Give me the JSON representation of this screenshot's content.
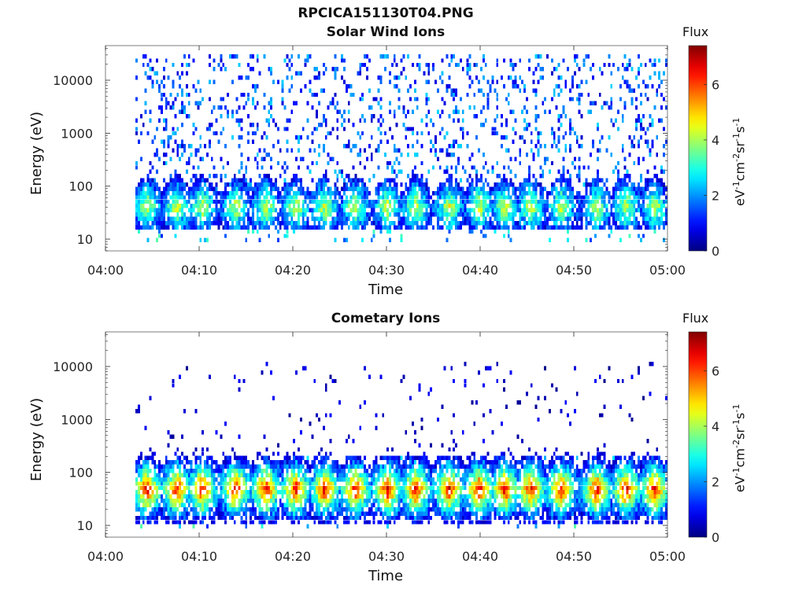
{
  "figure": {
    "title": "RPCICA151130T04.PNG"
  },
  "panels": [
    {
      "title": "Solar Wind Ions",
      "xlabel": "Time",
      "ylabel": "Energy (eV)",
      "colorbar": {
        "title": "Flux",
        "unit_parts": [
          "eV",
          "-1",
          "cm",
          "-2",
          "sr",
          "-1",
          "s",
          "-1"
        ],
        "ticks": [
          "0",
          "2",
          "4",
          "6"
        ]
      }
    },
    {
      "title": "Cometary Ions",
      "xlabel": "Time",
      "ylabel": "Energy (eV)",
      "colorbar": {
        "title": "Flux",
        "unit_parts": [
          "eV",
          "-1",
          "cm",
          "-2",
          "sr",
          "-1",
          "s",
          "-1"
        ],
        "ticks": [
          "0",
          "2",
          "4",
          "6"
        ]
      }
    }
  ],
  "chart_data": [
    {
      "type": "heatmap",
      "title": "Solar Wind Ions",
      "xlabel": "Time",
      "ylabel": "Energy (eV)",
      "x_ticks": [
        "04:00",
        "04:10",
        "04:20",
        "04:30",
        "04:40",
        "04:50",
        "05:00"
      ],
      "x_range_minutes": [
        0,
        60
      ],
      "y_ticks": [
        "10",
        "100",
        "1000",
        "10000"
      ],
      "y_scale": "log",
      "y_range": [
        6,
        45000
      ],
      "data_start_minute": 3.2,
      "data_end_minute": 60.0,
      "colorbar": {
        "label": "Flux",
        "range": [
          0,
          7.4
        ],
        "colormap": "jet"
      },
      "low_energy_band": {
        "energy_min": 20,
        "energy_max": 80,
        "peak_flux": 4.5
      },
      "scatter_energy_range": [
        100,
        30000
      ],
      "scatter_flux_range": [
        0.5,
        2.5
      ],
      "burst_minutes": [
        4.3,
        7.5,
        10.2,
        13.8,
        17.0,
        20.2,
        23.3,
        26.5,
        30.0,
        33.0,
        36.6,
        39.8,
        42.5,
        45.3,
        48.5,
        52.3,
        55.5,
        58.5
      ]
    },
    {
      "type": "heatmap",
      "title": "Cometary Ions",
      "xlabel": "Time",
      "ylabel": "Energy (eV)",
      "x_ticks": [
        "04:00",
        "04:10",
        "04:20",
        "04:30",
        "04:40",
        "04:50",
        "05:00"
      ],
      "x_range_minutes": [
        0,
        60
      ],
      "y_ticks": [
        "10",
        "100",
        "1000",
        "10000"
      ],
      "y_scale": "log",
      "y_range": [
        6,
        45000
      ],
      "data_start_minute": 3.2,
      "data_end_minute": 60.0,
      "colorbar": {
        "label": "Flux",
        "range": [
          0,
          7.4
        ],
        "colormap": "jet"
      },
      "low_energy_band": {
        "energy_min": 15,
        "energy_max": 150,
        "peak_flux": 6.8
      },
      "scatter_energy_range": [
        200,
        12000
      ],
      "scatter_flux_range": [
        0.1,
        1.0
      ],
      "burst_minutes": [
        4.3,
        7.5,
        10.2,
        13.8,
        17.0,
        20.2,
        23.3,
        26.5,
        30.0,
        33.0,
        36.6,
        39.8,
        42.5,
        45.3,
        48.5,
        52.3,
        55.5,
        58.5
      ]
    }
  ]
}
